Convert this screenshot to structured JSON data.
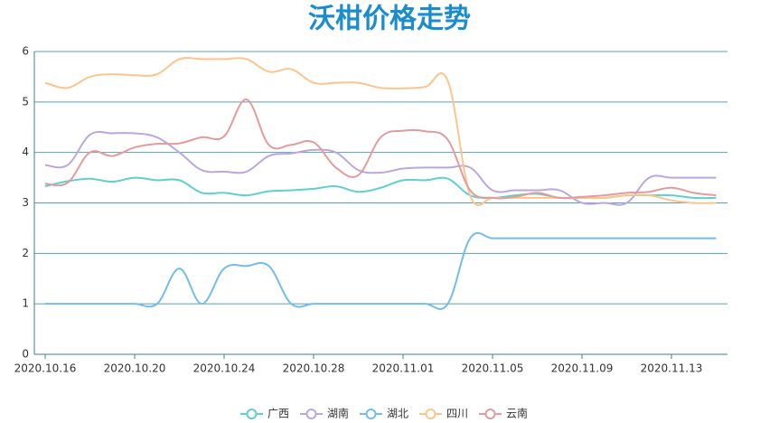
{
  "chart_data": {
    "type": "line",
    "title": "沃柑价格走势",
    "categories": [
      "2020.10.16",
      null,
      null,
      null,
      "2020.10.20",
      null,
      null,
      null,
      "2020.10.24",
      null,
      null,
      null,
      "2020.10.28",
      null,
      null,
      null,
      "2020.11.01",
      null,
      null,
      null,
      "2020.11.05",
      null,
      null,
      null,
      "2020.11.09",
      null,
      null,
      null,
      "2020.11.13",
      null,
      null
    ],
    "ylim": [
      0,
      6
    ],
    "yticks": [
      0,
      1,
      2,
      3,
      4,
      5,
      6
    ],
    "grid": true,
    "smooth": true,
    "legend": "bottom",
    "series": [
      {
        "name": "广西",
        "color": "#5fd0cc",
        "values": [
          3.33,
          3.43,
          3.48,
          3.42,
          3.5,
          3.45,
          3.45,
          3.2,
          3.2,
          3.15,
          3.23,
          3.25,
          3.28,
          3.33,
          3.22,
          3.3,
          3.45,
          3.45,
          3.48,
          3.15,
          3.1,
          3.15,
          3.18,
          3.1,
          3.1,
          3.1,
          3.15,
          3.15,
          3.15,
          3.1,
          3.1
        ]
      },
      {
        "name": "湖南",
        "color": "#b9a8de",
        "values": [
          3.75,
          3.75,
          4.35,
          4.38,
          4.38,
          4.3,
          4.0,
          3.65,
          3.62,
          3.62,
          3.93,
          3.98,
          4.05,
          4.0,
          3.65,
          3.6,
          3.68,
          3.7,
          3.7,
          3.7,
          3.25,
          3.25,
          3.25,
          3.25,
          3.0,
          3.0,
          3.0,
          3.5,
          3.5,
          3.5,
          3.5
        ]
      },
      {
        "name": "湖北",
        "color": "#74bce9",
        "values": [
          1,
          1,
          1,
          1,
          1,
          1,
          1.7,
          1.0,
          1.7,
          1.75,
          1.75,
          1.0,
          1,
          1,
          1,
          1,
          1,
          1,
          1.0,
          2.3,
          2.3,
          2.3,
          2.3,
          2.3,
          2.3,
          2.3,
          2.3,
          2.3,
          2.3,
          2.3,
          2.3
        ]
      },
      {
        "name": "四川",
        "color": "#fcc58d",
        "values": [
          5.38,
          5.28,
          5.5,
          5.55,
          5.53,
          5.55,
          5.85,
          5.85,
          5.85,
          5.85,
          5.6,
          5.65,
          5.38,
          5.38,
          5.38,
          5.28,
          5.27,
          5.3,
          5.42,
          3.15,
          3.1,
          3.1,
          3.1,
          3.1,
          3.1,
          3.1,
          3.15,
          3.15,
          3.05,
          3.0,
          3.0
        ]
      },
      {
        "name": "云南",
        "color": "#e39b9d",
        "values": [
          3.38,
          3.4,
          4.0,
          3.93,
          4.1,
          4.17,
          4.18,
          4.3,
          4.32,
          5.05,
          4.15,
          4.15,
          4.2,
          3.7,
          3.55,
          4.3,
          4.43,
          4.42,
          4.25,
          3.25,
          3.1,
          3.12,
          3.2,
          3.1,
          3.12,
          3.15,
          3.2,
          3.22,
          3.3,
          3.2,
          3.15
        ]
      }
    ]
  }
}
